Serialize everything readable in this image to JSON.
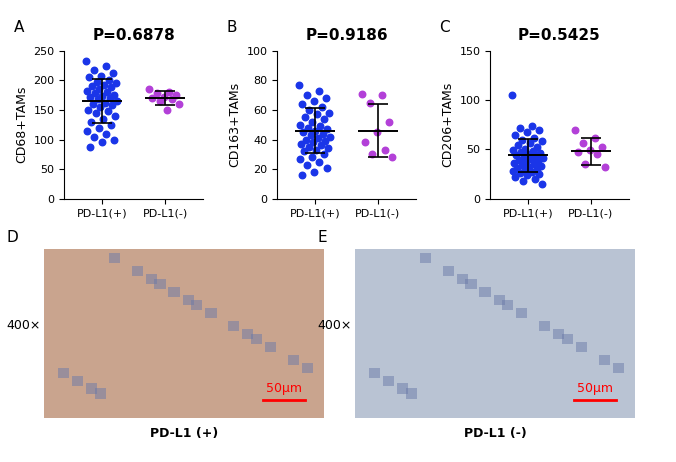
{
  "chart_data": [
    {
      "type": "scatter",
      "panel": "A",
      "title": "P=0.6878",
      "y_label": "CD68+TAMs",
      "categories": [
        "PD-L1(+)",
        "PD-L1(-)"
      ],
      "values": [
        [
          232,
          225,
          218,
          212,
          208,
          205,
          200,
          198,
          195,
          192,
          190,
          188,
          185,
          182,
          180,
          178,
          176,
          174,
          172,
          170,
          168,
          165,
          162,
          160,
          158,
          155,
          150,
          148,
          145,
          140,
          135,
          130,
          125,
          120,
          115,
          110,
          105,
          100,
          95,
          88
        ],
        [
          185,
          180,
          178,
          175,
          172,
          170,
          168,
          165,
          160,
          150
        ]
      ],
      "colors": [
        "#1a35e8",
        "#b340d8"
      ],
      "mean": [
        165,
        170
      ],
      "sd": [
        37,
        12
      ],
      "ylim": [
        0,
        250
      ],
      "yticks": [
        0,
        50,
        100,
        150,
        200,
        250
      ]
    },
    {
      "type": "scatter",
      "panel": "B",
      "title": "P=0.9186",
      "y_label": "CD163+TAMs",
      "categories": [
        "PD-L1(+)",
        "PD-L1(-)"
      ],
      "values": [
        [
          77,
          73,
          70,
          68,
          66,
          64,
          62,
          60,
          58,
          57,
          55,
          54,
          52,
          50,
          49,
          48,
          47,
          46,
          45,
          44,
          43,
          42,
          41,
          40,
          39,
          38,
          37,
          36,
          35,
          34,
          33,
          32,
          30,
          28,
          27,
          25,
          23,
          21,
          18,
          16
        ],
        [
          71,
          70,
          65,
          52,
          45,
          38,
          33,
          30,
          28
        ]
      ],
      "colors": [
        "#1a35e8",
        "#b340d8"
      ],
      "mean": [
        46,
        46
      ],
      "sd": [
        15,
        18
      ],
      "ylim": [
        0,
        100
      ],
      "yticks": [
        0,
        20,
        40,
        60,
        80,
        100
      ]
    },
    {
      "type": "scatter",
      "panel": "C",
      "title": "P=0.5425",
      "y_label": "CD206+TAMs",
      "categories": [
        "PD-L1(+)",
        "PD-L1(-)"
      ],
      "values": [
        [
          105,
          74,
          72,
          70,
          68,
          65,
          62,
          60,
          58,
          56,
          54,
          52,
          50,
          49,
          48,
          47,
          46,
          45,
          44,
          43,
          42,
          41,
          40,
          39,
          38,
          37,
          36,
          35,
          34,
          33,
          32,
          31,
          30,
          29,
          28,
          27,
          26,
          25,
          24,
          22,
          20,
          18,
          15
        ],
        [
          70,
          62,
          56,
          52,
          49,
          47,
          45,
          35,
          32
        ]
      ],
      "colors": [
        "#1a35e8",
        "#b340d8"
      ],
      "mean": [
        44,
        48
      ],
      "sd": [
        17,
        14
      ],
      "ylim": [
        0,
        150
      ],
      "yticks": [
        0,
        50,
        100,
        150
      ]
    }
  ],
  "images": [
    {
      "panel": "D",
      "magnification": "400×",
      "scale_bar": "50μm",
      "caption": "PD-L1 (+)"
    },
    {
      "panel": "E",
      "magnification": "400×",
      "scale_bar": "50μm",
      "caption": "PD-L1 (-)"
    }
  ]
}
